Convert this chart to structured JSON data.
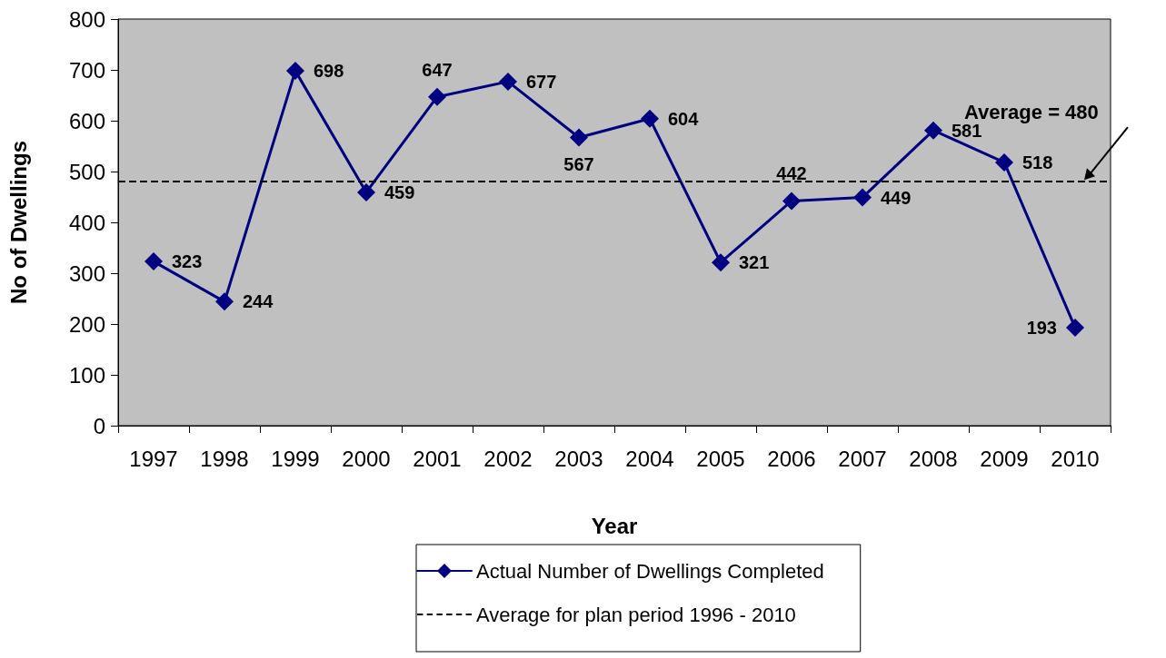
{
  "chart_data": {
    "type": "line",
    "xlabel": "Year",
    "ylabel": "No of Dwellings",
    "categories": [
      "1997",
      "1998",
      "1999",
      "2000",
      "2001",
      "2002",
      "2003",
      "2004",
      "2005",
      "2006",
      "2007",
      "2008",
      "2009",
      "2010"
    ],
    "series": [
      {
        "name": "Actual Number of Dwellings Completed",
        "color": "#000080",
        "values": [
          323,
          244,
          698,
          459,
          647,
          677,
          567,
          604,
          321,
          442,
          449,
          581,
          518,
          193
        ]
      }
    ],
    "ylim": [
      0,
      800
    ],
    "yticks": [
      0,
      100,
      200,
      300,
      400,
      500,
      600,
      700,
      800
    ],
    "ref_lines": [
      {
        "axis": "y",
        "value": 480,
        "label": "Average for plan period 1996 - 2010",
        "color": "#000000",
        "line_style": "dashed"
      }
    ],
    "annotations": [
      {
        "text": "Average = 480",
        "x": "2010",
        "y": 480
      }
    ],
    "data_labels": true,
    "marker": "diamond",
    "line_style": "solid",
    "grid": false,
    "legend": "bottom"
  }
}
